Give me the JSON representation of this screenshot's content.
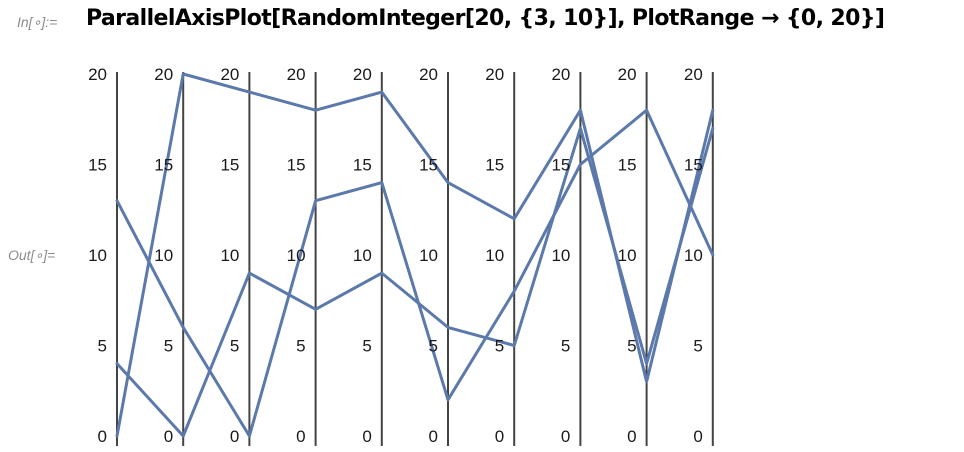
{
  "cell": {
    "in_label": "In[∘]:=",
    "out_label": "Out[∘]=",
    "input": "ParallelAxisPlot[RandomInteger[20, {3, 10}], PlotRange → {0, 20}]"
  },
  "colors": {
    "series": "#5b79ab",
    "axis": "#444444",
    "tick_text": "#1a1a1a"
  },
  "chart_data": {
    "type": "line",
    "subtype": "parallel-axis",
    "axes_count": 10,
    "ylim": [
      0,
      20
    ],
    "tick_values": [
      0,
      5,
      10,
      15,
      20
    ],
    "grid": false,
    "series": [
      {
        "values": [
          0,
          20,
          19,
          18,
          19,
          14,
          12,
          18,
          3,
          18
        ]
      },
      {
        "values": [
          13,
          6,
          0,
          13,
          14,
          2,
          8,
          15,
          18,
          10
        ]
      },
      {
        "values": [
          4,
          0,
          9,
          7,
          9,
          6,
          5,
          17,
          4,
          17
        ]
      }
    ]
  }
}
